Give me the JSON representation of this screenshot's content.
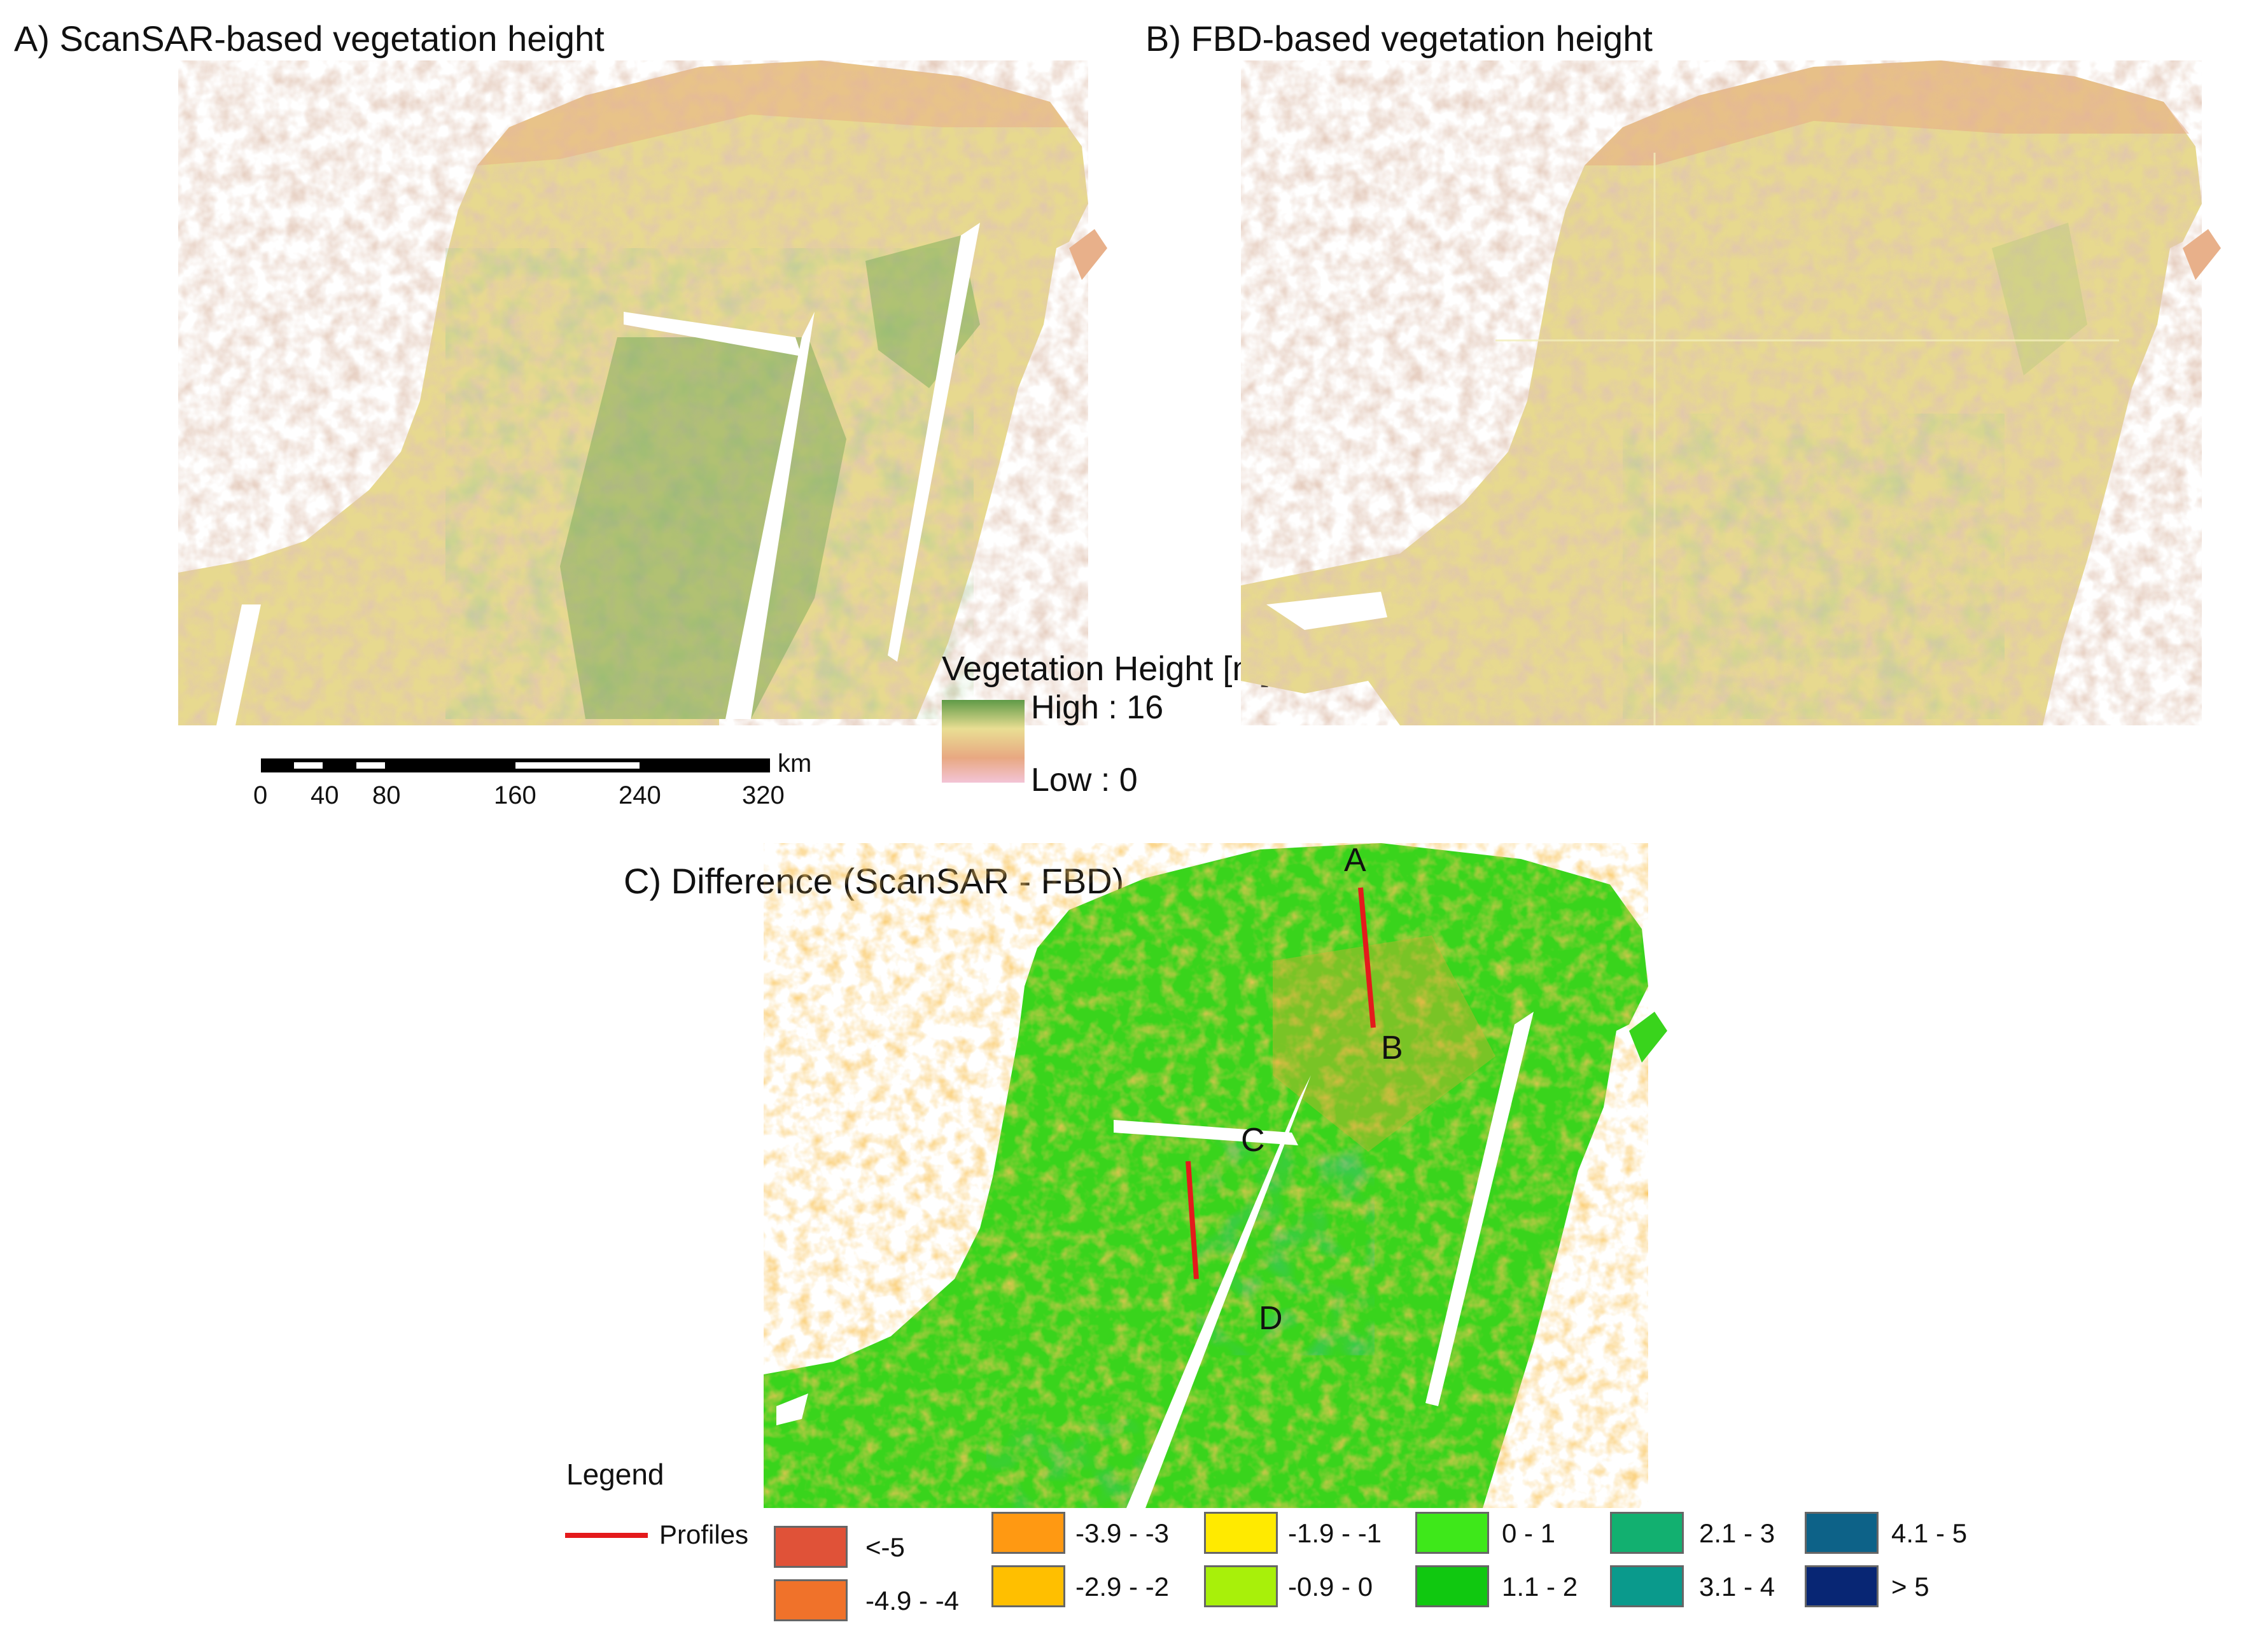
{
  "panels": {
    "a": {
      "title": "A) ScanSAR-based vegetation height"
    },
    "b": {
      "title": "B) FBD-based vegetation height"
    },
    "c": {
      "title": "C) Difference (ScanSAR - FBD)"
    }
  },
  "vegetation_legend": {
    "title": "Vegetation Height [m]",
    "high_label": "High : 16",
    "low_label": "Low : 0",
    "colors": [
      "#5f9a47",
      "#e9de93",
      "#e8a882",
      "#f3c4d6"
    ]
  },
  "scale_bar": {
    "unit": "km",
    "ticks": [
      "0",
      "40",
      "80",
      "160",
      "240",
      "320"
    ]
  },
  "profiles": {
    "labels": [
      "A",
      "B",
      "C",
      "D"
    ],
    "line_color": "#e41a1c"
  },
  "difference_legend": {
    "title": "Legend",
    "profiles_label": "Profiles",
    "classes": [
      {
        "label": "<-5",
        "color": "#e05238"
      },
      {
        "label": "-4.9 - -4",
        "color": "#f0722a"
      },
      {
        "label": "-3.9 - -3",
        "color": "#ff9912"
      },
      {
        "label": "-2.9 - -2",
        "color": "#ffbf00"
      },
      {
        "label": "-1.9 - -1",
        "color": "#ffea00"
      },
      {
        "label": "-0.9 - 0",
        "color": "#a8f00a"
      },
      {
        "label": "0 - 1",
        "color": "#3ee81a"
      },
      {
        "label": "1.1 - 2",
        "color": "#10c810"
      },
      {
        "label": "2.1 - 3",
        "color": "#12b070"
      },
      {
        "label": "3.1 - 4",
        "color": "#0a9a8c"
      },
      {
        "label": "4.1 - 5",
        "color": "#0d6288"
      },
      {
        "label": "> 5",
        "color": "#082674"
      }
    ]
  }
}
